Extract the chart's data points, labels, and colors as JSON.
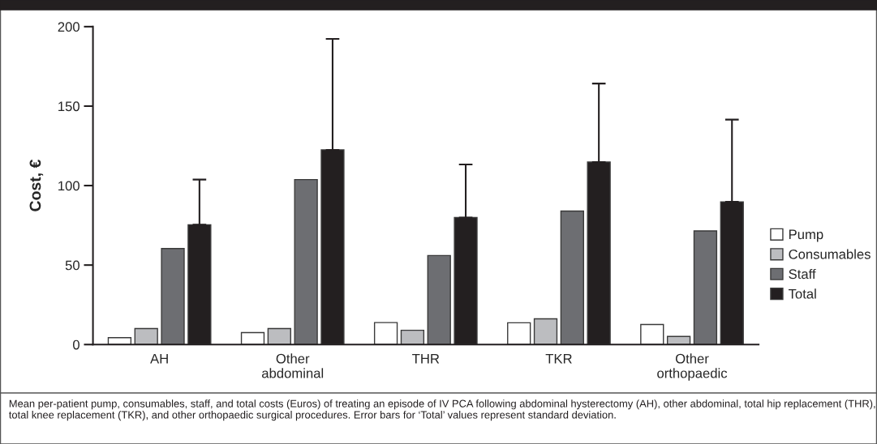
{
  "chart_data": {
    "type": "bar",
    "ylabel": "Cost, €",
    "categories": [
      "AH",
      "Other\nabdominal",
      "THR",
      "TKR",
      "Other\northopaedic"
    ],
    "series": [
      {
        "name": "Pump",
        "color": "#ffffff",
        "values": [
          4.3,
          7.5,
          13.8,
          13.7,
          12.6
        ]
      },
      {
        "name": "Consumables",
        "color": "#bcbdc0",
        "values": [
          10.1,
          10.1,
          9.0,
          16.2,
          5.1
        ]
      },
      {
        "name": "Staff",
        "color": "#6d6e72",
        "values": [
          60.4,
          103.8,
          56,
          84,
          71.5
        ]
      },
      {
        "name": "Total",
        "color": "#231f20",
        "values": [
          75.4,
          122.5,
          79.9,
          114.8,
          89.8
        ],
        "errors": [
          [
            75.4,
            103.8
          ],
          [
            122.5,
            192.3
          ],
          [
            79.9,
            113.3
          ],
          [
            114.8,
            164.2
          ],
          [
            89.8,
            141.5
          ]
        ]
      }
    ],
    "ylim": [
      0,
      200
    ],
    "yticks": [
      0,
      50,
      100,
      150,
      200
    ],
    "grid": false,
    "legend": "right",
    "annotations": [
      "Mean per-patient pump, consumables, staff, and total costs (Euros) of treating an episode of IV PCA following abdominal hysterectomy (AH), other abdominal, total hip replacement (THR), total knee replacement (TKR), and other orthopaedic surgical procedures. Error bars for ‘Total’ values represent standard deviation."
    ]
  }
}
